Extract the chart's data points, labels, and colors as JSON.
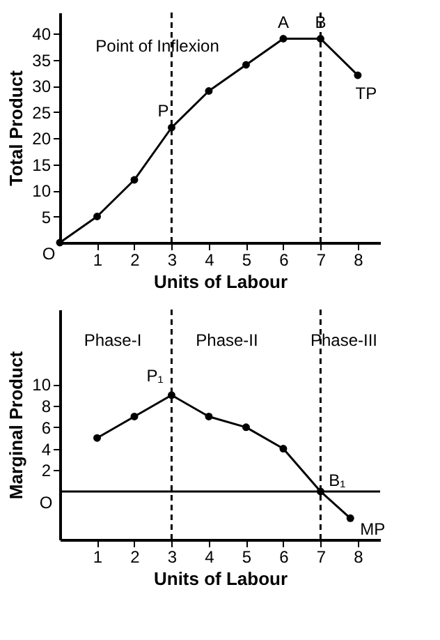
{
  "chart_data": [
    {
      "type": "line",
      "xlabel": "Units of Labour",
      "ylabel": "Total Product",
      "x": [
        0,
        1,
        2,
        3,
        4,
        5,
        6,
        7,
        8
      ],
      "series": [
        {
          "color": "#000000",
          "values": [
            0,
            5,
            12,
            22,
            29,
            34,
            39,
            39,
            32
          ]
        }
      ],
      "marker": "circle",
      "line_style": "solid",
      "grid": false,
      "xlim": [
        0,
        8.6
      ],
      "xticks": [
        1,
        2,
        3,
        4,
        5,
        6,
        7,
        8
      ],
      "ylim": [
        0,
        44
      ],
      "yticks": [
        5,
        10,
        15,
        20,
        25,
        30,
        35,
        40
      ],
      "ref_lines": [
        {
          "axis": "x",
          "value": 3,
          "line_style": "dashed"
        },
        {
          "axis": "x",
          "value": 7,
          "line_style": "dashed"
        }
      ],
      "annotations": [
        "Point of Inflexion",
        {
          "text": "P",
          "x": 3,
          "y": 22
        },
        {
          "text": "A",
          "x": 6,
          "y": 39
        },
        {
          "text": "B",
          "x": 7,
          "y": 39
        },
        {
          "text": "TP",
          "x": 8,
          "y": 32
        },
        {
          "text": "O",
          "x": 0,
          "y": 0
        }
      ]
    },
    {
      "type": "line",
      "xlabel": "Units of Labour",
      "ylabel": "Marginal Product",
      "x": [
        1,
        2,
        3,
        4,
        5,
        6,
        7,
        7.8
      ],
      "series": [
        {
          "color": "#000000",
          "values": [
            5,
            7,
            9,
            7,
            6,
            4,
            0,
            -2.5
          ]
        }
      ],
      "marker": "circle",
      "line_style": "solid",
      "grid": false,
      "xlim": [
        0,
        8.6
      ],
      "xticks": [
        1,
        2,
        3,
        4,
        5,
        6,
        7,
        8
      ],
      "ylim": [
        -4.5,
        17
      ],
      "yticks": [
        2,
        4,
        6,
        8,
        10
      ],
      "ref_lines": [
        {
          "axis": "x",
          "value": 3,
          "line_style": "dashed"
        },
        {
          "axis": "x",
          "value": 7,
          "line_style": "dashed"
        },
        {
          "axis": "y",
          "value": 0,
          "line_style": "solid"
        }
      ],
      "annotations": [
        "Phase-I",
        "Phase-II",
        "Phase-III",
        {
          "text": "P₁",
          "x": 3,
          "y": 9
        },
        {
          "text": "B₁",
          "x": 7,
          "y": 0
        },
        {
          "text": "MP",
          "x": 7.8,
          "y": -2.5
        },
        {
          "text": "O",
          "x": 0,
          "y": 0
        }
      ]
    }
  ]
}
